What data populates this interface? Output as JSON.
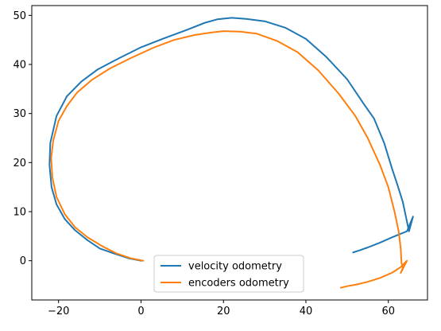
{
  "chart_data": {
    "type": "line",
    "title": "",
    "xlabel": "",
    "ylabel": "",
    "xlim": [
      -26.5,
      69.5
    ],
    "ylim": [
      -8,
      52
    ],
    "xticks": [
      -20,
      0,
      20,
      40,
      60
    ],
    "yticks": [
      0,
      10,
      20,
      30,
      40,
      50
    ],
    "grid": false,
    "legend_position": "lower center",
    "series": [
      {
        "name": "velocity odometry",
        "color": "#1f77b4",
        "points": [
          [
            0,
            0
          ],
          [
            -3,
            0.5
          ],
          [
            -6,
            1.3
          ],
          [
            -10,
            2.5
          ],
          [
            -13,
            4.2
          ],
          [
            -16,
            6.2
          ],
          [
            -18.5,
            8.5
          ],
          [
            -20.5,
            11.5
          ],
          [
            -21.7,
            15
          ],
          [
            -22.2,
            19.5
          ],
          [
            -22,
            24
          ],
          [
            -20.5,
            29.5
          ],
          [
            -18,
            33.5
          ],
          [
            -14.5,
            36.5
          ],
          [
            -10.5,
            39
          ],
          [
            -5.5,
            41.2
          ],
          [
            0,
            43.5
          ],
          [
            5.5,
            45.3
          ],
          [
            11,
            47
          ],
          [
            15.5,
            48.5
          ],
          [
            18.5,
            49.2
          ],
          [
            22,
            49.5
          ],
          [
            25.5,
            49.3
          ],
          [
            30,
            48.8
          ],
          [
            35,
            47.5
          ],
          [
            40,
            45.2
          ],
          [
            45,
            41.5
          ],
          [
            50,
            37
          ],
          [
            54,
            32
          ],
          [
            56.5,
            29
          ],
          [
            59,
            24
          ],
          [
            61,
            18.5
          ],
          [
            62,
            16
          ],
          [
            63.5,
            12
          ],
          [
            64.5,
            8
          ],
          [
            65,
            6
          ],
          [
            65.5,
            7.5
          ],
          [
            66,
            9
          ],
          [
            64.5,
            6
          ],
          [
            63,
            5.5
          ],
          [
            61,
            4.8
          ],
          [
            58,
            3.7
          ],
          [
            55,
            2.7
          ],
          [
            53,
            2.1
          ],
          [
            51.5,
            1.7
          ]
        ]
      },
      {
        "name": "encoders odometry",
        "color": "#ff7f0e",
        "points": [
          [
            0.5,
            0
          ],
          [
            -2.5,
            0.5
          ],
          [
            -6,
            1.5
          ],
          [
            -9.5,
            3
          ],
          [
            -13,
            4.8
          ],
          [
            -16,
            6.8
          ],
          [
            -18.5,
            9.5
          ],
          [
            -20.5,
            13
          ],
          [
            -21.5,
            17
          ],
          [
            -21.8,
            21
          ],
          [
            -21.3,
            24.5
          ],
          [
            -20,
            28.5
          ],
          [
            -18,
            31.5
          ],
          [
            -15.5,
            34.3
          ],
          [
            -12,
            36.8
          ],
          [
            -7.5,
            39.2
          ],
          [
            -2.5,
            41.3
          ],
          [
            3,
            43.4
          ],
          [
            8,
            45
          ],
          [
            13,
            46
          ],
          [
            17,
            46.5
          ],
          [
            20,
            46.8
          ],
          [
            24,
            46.7
          ],
          [
            28,
            46.3
          ],
          [
            33,
            44.8
          ],
          [
            38,
            42.5
          ],
          [
            43,
            38.8
          ],
          [
            48,
            34
          ],
          [
            52,
            29.5
          ],
          [
            55,
            25
          ],
          [
            58,
            19.5
          ],
          [
            60,
            15
          ],
          [
            61.5,
            10
          ],
          [
            62.5,
            6
          ],
          [
            63,
            2.5
          ],
          [
            63.2,
            -0.5
          ],
          [
            63.5,
            -1.5
          ],
          [
            63,
            -2.5
          ],
          [
            64.5,
            0
          ],
          [
            63,
            -1.3
          ],
          [
            61,
            -2.4
          ],
          [
            58,
            -3.5
          ],
          [
            55,
            -4.3
          ],
          [
            52,
            -4.9
          ],
          [
            50,
            -5.2
          ],
          [
            48.5,
            -5.5
          ]
        ]
      }
    ]
  }
}
